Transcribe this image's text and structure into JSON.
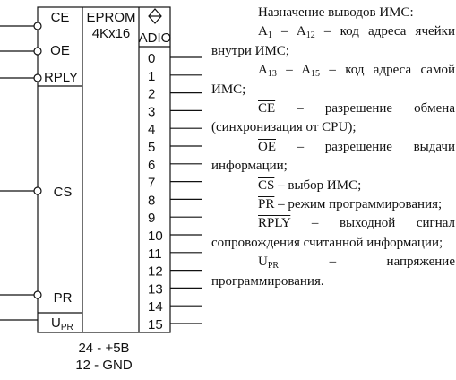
{
  "chip": {
    "name": "EPROM",
    "size": "4Kx16",
    "data_header": "ADIO",
    "left_pins": [
      {
        "label": "CE",
        "inverted": true
      },
      {
        "label": "OE",
        "inverted": true
      },
      {
        "label": "RPLY",
        "inverted": true
      },
      {
        "label": "CS",
        "inverted": true
      },
      {
        "label": "PR",
        "inverted": true
      },
      {
        "label_main": "U",
        "label_sub": "PR",
        "inverted": false
      }
    ],
    "right_pins": [
      "0",
      "1",
      "2",
      "3",
      "4",
      "5",
      "6",
      "7",
      "8",
      "9",
      "10",
      "11",
      "12",
      "13",
      "14",
      "15"
    ],
    "power": "24 - +5В",
    "ground": "12 - GND"
  },
  "description": {
    "title": "Назначение выводов ИМС:",
    "a_main": "A",
    "a1_sub": "1",
    "a_dash": " – A",
    "a12_sub": "12",
    "a_low_text": " – код адреса ячейки внутри ИМС;",
    "a13_sub": "13",
    "a15_sub": "15",
    "a_high_text": " – код адреса самой ИМС;",
    "ce_sym": "CE",
    "ce_text": " – разрешение обмена (синхронизация от CPU);",
    "oe_sym": "OE",
    "oe_text": " – разрешение выдачи информации;",
    "cs_sym": "CS",
    "cs_text": " – выбор ИМС;",
    "pr_sym": "PR",
    "pr_text": " – режим программирования;",
    "rply_sym": "RPLY",
    "rply_text": " – выходной сигнал сопровождения считанной информации;",
    "u_main": "U",
    "u_sub": "PR",
    "u_text": " – напряжение программирования."
  }
}
